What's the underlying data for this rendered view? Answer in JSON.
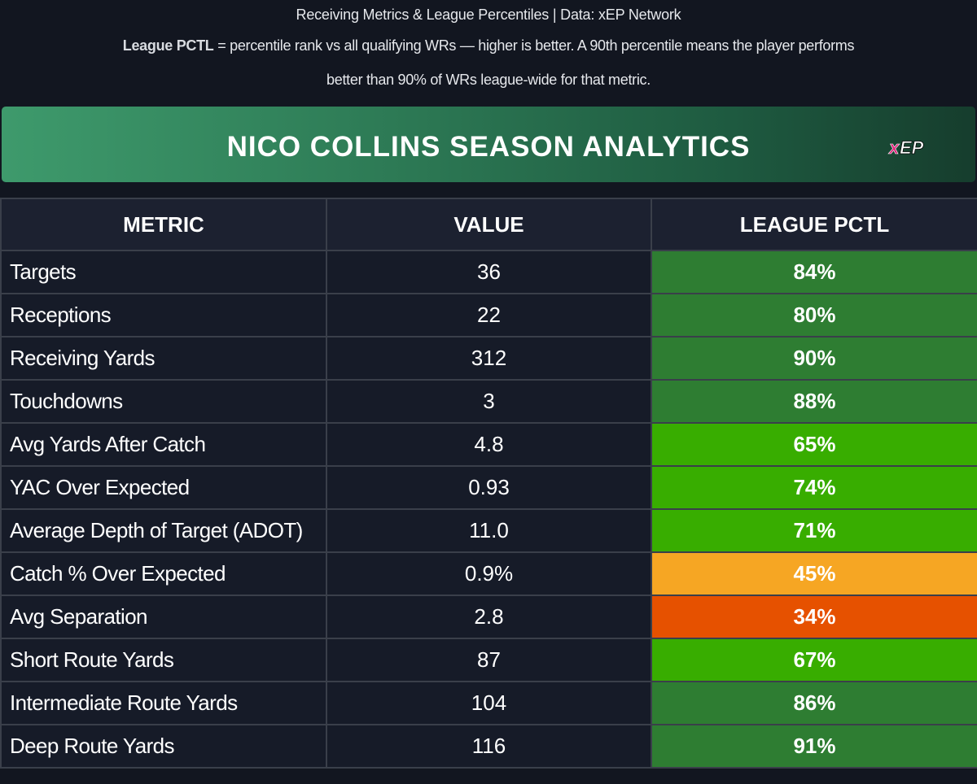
{
  "caption": {
    "line1": "Receiving Metrics & League Percentiles | Data: xEP Network",
    "line2_bold": "League PCTL",
    "line2_rest": " = percentile rank vs all qualifying WRs — higher is better. A 90th percentile means the player performs",
    "line3": "better than 90% of WRs league-wide for that metric."
  },
  "banner": {
    "title": "NICO COLLINS SEASON ANALYTICS",
    "logo_text": "xEP"
  },
  "table": {
    "headers": [
      "METRIC",
      "VALUE",
      "LEAGUE PCTL"
    ],
    "rows": [
      {
        "metric": "Targets",
        "value": "36",
        "pctl": "84%",
        "color": "#2e7d32"
      },
      {
        "metric": "Receptions",
        "value": "22",
        "pctl": "80%",
        "color": "#2e7d32"
      },
      {
        "metric": "Receiving Yards",
        "value": "312",
        "pctl": "90%",
        "color": "#2e7d32"
      },
      {
        "metric": "Touchdowns",
        "value": "3",
        "pctl": "88%",
        "color": "#2e7d32"
      },
      {
        "metric": "Avg Yards After Catch",
        "value": "4.8",
        "pctl": "65%",
        "color": "#38ad00"
      },
      {
        "metric": "YAC Over Expected",
        "value": "0.93",
        "pctl": "74%",
        "color": "#38ad00"
      },
      {
        "metric": "Average Depth of Target (ADOT)",
        "value": "11.0",
        "pctl": "71%",
        "color": "#38ad00"
      },
      {
        "metric": "Catch % Over Expected",
        "value": "0.9%",
        "pctl": "45%",
        "color": "#f6a623"
      },
      {
        "metric": "Avg Separation",
        "value": "2.8",
        "pctl": "34%",
        "color": "#e65100"
      },
      {
        "metric": "Short Route Yards",
        "value": "87",
        "pctl": "67%",
        "color": "#38ad00"
      },
      {
        "metric": "Intermediate Route Yards",
        "value": "104",
        "pctl": "86%",
        "color": "#2e7d32"
      },
      {
        "metric": "Deep Route Yards",
        "value": "116",
        "pctl": "91%",
        "color": "#2e7d32"
      }
    ]
  },
  "colors": {
    "background": "#121620",
    "header_bg": "#1c2130",
    "row_bg": "#161b28",
    "banner_start": "#3e9a6c",
    "banner_end": "#163d2d",
    "logo_pink": "#e0207a"
  },
  "icons": {
    "logo": "xep-logo"
  }
}
